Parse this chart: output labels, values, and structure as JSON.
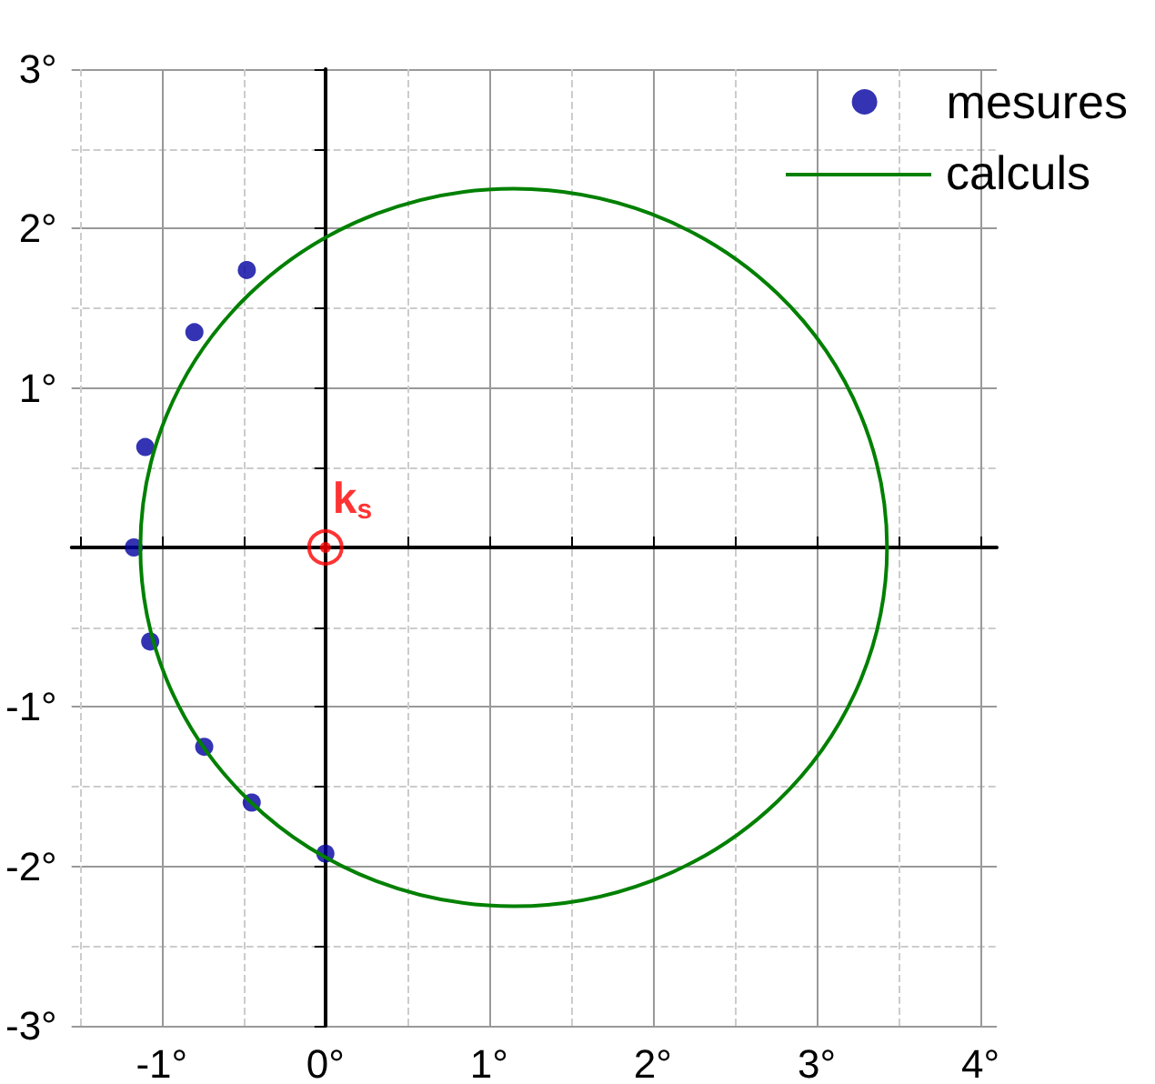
{
  "chart_data": {
    "type": "scatter",
    "series": [
      {
        "name": "mesures",
        "type": "scatter",
        "color": "#0000a0",
        "marker": "circle",
        "x": [
          -0.48,
          -0.8,
          -1.1,
          -1.17,
          -1.07,
          -0.74,
          -0.45,
          0
        ],
        "values": [
          1.74,
          1.35,
          0.63,
          0,
          -0.59,
          -1.25,
          -1.6,
          -1.92
        ]
      }
    ],
    "annotations": [
      {
        "text": "k$_{s}$",
        "x": 0,
        "y": 0
      },
      "calculs"
    ],
    "xlim": [
      -1.55,
      4.1
    ],
    "ylim": [
      -3,
      3
    ],
    "xticks": [
      {
        "value": -1,
        "label": "-1°"
      },
      {
        "value": 0,
        "label": "0°"
      },
      {
        "value": 1,
        "label": "1°"
      },
      {
        "value": 2,
        "label": "2°"
      },
      {
        "value": 3,
        "label": "3°"
      },
      {
        "value": 4,
        "label": "4°"
      }
    ],
    "yticks": [
      {
        "value": -3,
        "label": "-3°"
      },
      {
        "value": -2,
        "label": "-2°"
      },
      {
        "value": -1,
        "label": "-1°"
      },
      {
        "value": 0,
        "label": null
      },
      {
        "value": 1,
        "label": "1°"
      },
      {
        "value": 2,
        "label": "2°"
      },
      {
        "value": 3,
        "label": "3°"
      }
    ],
    "grid": true,
    "legend": "top right"
  }
}
